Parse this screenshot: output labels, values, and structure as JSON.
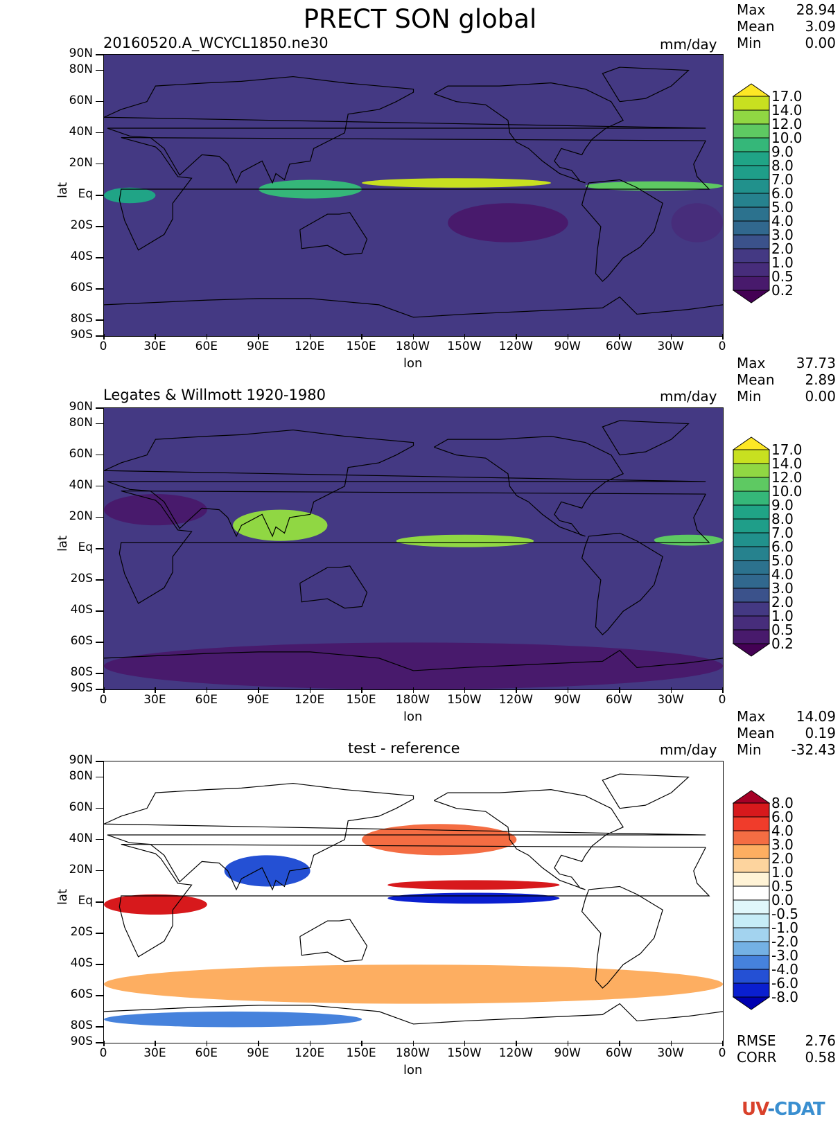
{
  "figure": {
    "title": "PRECT SON global",
    "logo": "UV-CDAT"
  },
  "axes": {
    "x_label": "lon",
    "y_label": "lat",
    "x_ticks": [
      "0",
      "30E",
      "60E",
      "90E",
      "120E",
      "150E",
      "180W",
      "150W",
      "120W",
      "90W",
      "60W",
      "30W",
      "0"
    ],
    "y_ticks": [
      "90N",
      "80N",
      "60N",
      "40N",
      "20N",
      "Eq",
      "20S",
      "40S",
      "60S",
      "80S",
      "90S"
    ],
    "y_tick_lats": [
      90,
      80,
      60,
      40,
      20,
      0,
      -20,
      -40,
      -60,
      -80,
      -90
    ]
  },
  "panels": [
    {
      "subtitle": "20160520.A_WCYCL1850.ne30",
      "units": "mm/day",
      "stats": [
        {
          "label": "Max",
          "value": "28.94"
        },
        {
          "label": "Mean",
          "value": "3.09"
        },
        {
          "label": "Min",
          "value": "0.00"
        }
      ],
      "colorbar": {
        "levels": [
          "17.0",
          "14.0",
          "12.0",
          "10.0",
          "9.0",
          "8.0",
          "7.0",
          "6.0",
          "5.0",
          "4.0",
          "3.0",
          "2.0",
          "1.0",
          "0.5",
          "0.2"
        ],
        "colors": [
          "#fde725",
          "#c8e020",
          "#90d743",
          "#5ec962",
          "#35b779",
          "#20a486",
          "#1f9e89",
          "#21918c",
          "#26828e",
          "#2c728e",
          "#31688e",
          "#3b528b",
          "#443983",
          "#472d7b",
          "#481a6c",
          "#440154"
        ]
      }
    },
    {
      "subtitle": "Legates & Willmott 1920-1980",
      "units": "mm/day",
      "stats": [
        {
          "label": "Max",
          "value": "37.73"
        },
        {
          "label": "Mean",
          "value": "2.89"
        },
        {
          "label": "Min",
          "value": "0.00"
        }
      ],
      "colorbar": {
        "levels": [
          "17.0",
          "14.0",
          "12.0",
          "10.0",
          "9.0",
          "8.0",
          "7.0",
          "6.0",
          "5.0",
          "4.0",
          "3.0",
          "2.0",
          "1.0",
          "0.5",
          "0.2"
        ],
        "colors": [
          "#fde725",
          "#c8e020",
          "#90d743",
          "#5ec962",
          "#35b779",
          "#20a486",
          "#1f9e89",
          "#21918c",
          "#26828e",
          "#2c728e",
          "#31688e",
          "#3b528b",
          "#443983",
          "#472d7b",
          "#481a6c",
          "#440154"
        ]
      }
    },
    {
      "subtitle": "test - reference",
      "units": "mm/day",
      "stats": [
        {
          "label": "Max",
          "value": "14.09"
        },
        {
          "label": "Mean",
          "value": "0.19"
        },
        {
          "label": "Min",
          "value": "-32.43"
        }
      ],
      "extra_stats": [
        {
          "label": "RMSE",
          "value": "2.76"
        },
        {
          "label": "CORR",
          "value": "0.58"
        }
      ],
      "colorbar": {
        "levels": [
          "8.0",
          "6.0",
          "4.0",
          "3.0",
          "2.0",
          "1.0",
          "0.5",
          "0.0",
          "-0.5",
          "-1.0",
          "-2.0",
          "-3.0",
          "-4.0",
          "-6.0",
          "-8.0"
        ],
        "colors": [
          "#a50026",
          "#d7191c",
          "#f03c2b",
          "#f46d43",
          "#fdae61",
          "#fdd49e",
          "#fff3d6",
          "#ffffff",
          "#e0f7fb",
          "#c6ecf7",
          "#a3d3ef",
          "#74b1e4",
          "#4682dc",
          "#2450d4",
          "#0a1fd0",
          "#0000b0"
        ]
      }
    }
  ],
  "chart_data": [
    {
      "type": "heatmap",
      "title": "PRECT SON global",
      "subtitle": "20160520.A_WCYCL1850.ne30",
      "units": "mm/day",
      "xlabel": "lon",
      "ylabel": "lat",
      "xlim": [
        0,
        360
      ],
      "ylim": [
        -90,
        90
      ],
      "stats": {
        "max": 28.94,
        "mean": 3.09,
        "min": 0.0
      },
      "contour_levels": [
        0.2,
        0.5,
        1.0,
        2.0,
        3.0,
        4.0,
        5.0,
        6.0,
        7.0,
        8.0,
        9.0,
        10.0,
        12.0,
        14.0,
        17.0
      ],
      "features": [
        {
          "lon0": 150,
          "lon1": 260,
          "lat0": 5,
          "lat1": 11,
          "value": 14
        },
        {
          "lon0": 90,
          "lon1": 150,
          "lat0": -2,
          "lat1": 10,
          "value": 9
        },
        {
          "lon0": 280,
          "lon1": 360,
          "lat0": 3,
          "lat1": 9,
          "value": 11
        },
        {
          "lon0": 0,
          "lon1": 30,
          "lat0": -5,
          "lat1": 5,
          "value": 8
        },
        {
          "lon0": 200,
          "lon1": 270,
          "lat0": -30,
          "lat1": -5,
          "value": 0.3
        },
        {
          "lon0": 330,
          "lon1": 360,
          "lat0": -30,
          "lat1": -5,
          "value": 0.5
        }
      ]
    },
    {
      "type": "heatmap",
      "subtitle": "Legates & Willmott 1920-1980",
      "units": "mm/day",
      "xlabel": "lon",
      "ylabel": "lat",
      "xlim": [
        0,
        360
      ],
      "ylim": [
        -90,
        90
      ],
      "stats": {
        "max": 37.73,
        "mean": 2.89,
        "min": 0.0
      },
      "contour_levels": [
        0.2,
        0.5,
        1.0,
        2.0,
        3.0,
        4.0,
        5.0,
        6.0,
        7.0,
        8.0,
        9.0,
        10.0,
        12.0,
        14.0,
        17.0
      ],
      "features": [
        {
          "lon0": 170,
          "lon1": 250,
          "lat0": 1,
          "lat1": 9,
          "value": 13
        },
        {
          "lon0": 75,
          "lon1": 130,
          "lat0": 5,
          "lat1": 25,
          "value": 12
        },
        {
          "lon0": 320,
          "lon1": 360,
          "lat0": 2,
          "lat1": 9,
          "value": 11
        },
        {
          "lon0": 0,
          "lon1": 360,
          "lat0": -90,
          "lat1": -60,
          "value": 0.3
        },
        {
          "lon0": 0,
          "lon1": 60,
          "lat0": 15,
          "lat1": 35,
          "value": 0.2
        }
      ]
    },
    {
      "type": "heatmap",
      "subtitle": "test - reference",
      "units": "mm/day",
      "xlabel": "lon",
      "ylabel": "lat",
      "xlim": [
        0,
        360
      ],
      "ylim": [
        -90,
        90
      ],
      "stats": {
        "max": 14.09,
        "mean": 0.19,
        "min": -32.43,
        "rmse": 2.76,
        "corr": 0.58
      },
      "contour_levels": [
        -8.0,
        -6.0,
        -4.0,
        -3.0,
        -2.0,
        -1.0,
        -0.5,
        0.0,
        0.5,
        1.0,
        2.0,
        3.0,
        4.0,
        6.0,
        8.0
      ],
      "features": [
        {
          "lon0": 165,
          "lon1": 265,
          "lat0": -1,
          "lat1": 6,
          "value": -8
        },
        {
          "lon0": 165,
          "lon1": 265,
          "lat0": 8,
          "lat1": 14,
          "value": 6
        },
        {
          "lon0": 0,
          "lon1": 60,
          "lat0": -8,
          "lat1": 5,
          "value": 6
        },
        {
          "lon0": 70,
          "lon1": 120,
          "lat0": 10,
          "lat1": 30,
          "value": -6
        },
        {
          "lon0": 150,
          "lon1": 240,
          "lat0": 30,
          "lat1": 50,
          "value": 3
        },
        {
          "lon0": 0,
          "lon1": 360,
          "lat0": -65,
          "lat1": -40,
          "value": 2
        },
        {
          "lon0": 0,
          "lon1": 150,
          "lat0": -80,
          "lat1": -70,
          "value": -4
        }
      ]
    }
  ]
}
